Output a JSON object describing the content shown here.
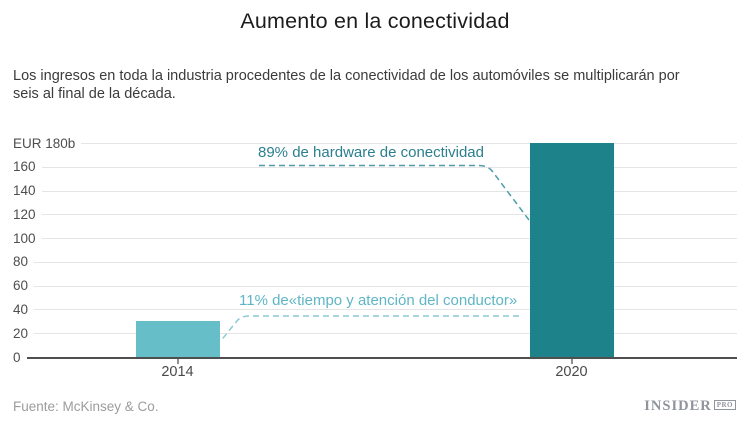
{
  "header": {
    "title": "Aumento en la conectividad",
    "subtitle": "Los ingresos en toda la industria procedentes de la conectividad de los automóviles se multiplicarán por seis al final de la década."
  },
  "chart_data": {
    "type": "bar",
    "categories": [
      "2014",
      "2020"
    ],
    "values": [
      30,
      180
    ],
    "ylim": [
      0,
      180
    ],
    "y_ticks": [
      {
        "value": 180,
        "label": "EUR 180b"
      },
      {
        "value": 160,
        "label": "160"
      },
      {
        "value": 140,
        "label": "140"
      },
      {
        "value": 120,
        "label": "120"
      },
      {
        "value": 100,
        "label": "100"
      },
      {
        "value": 80,
        "label": "80"
      },
      {
        "value": 60,
        "label": "60"
      },
      {
        "value": 40,
        "label": "40"
      },
      {
        "value": 20,
        "label": "20"
      },
      {
        "value": 0,
        "label": "0"
      }
    ],
    "grid": true,
    "bar_colors": [
      "#66bec9",
      "#1d828a"
    ],
    "annotations": [
      {
        "text": "89% de hardware de conectividad",
        "target": "2020",
        "color": "#2b7f8e",
        "line_color": "#4d9dab"
      },
      {
        "text": "11% de«tiempo y atención del conductor»",
        "target": "2014",
        "color": "#5fb6c4",
        "line_color": "#8bc9d4"
      }
    ]
  },
  "footer": {
    "source": "Fuente: McKinsey & Co.",
    "logo_main": "INSIDER",
    "logo_sub": "PRO"
  }
}
